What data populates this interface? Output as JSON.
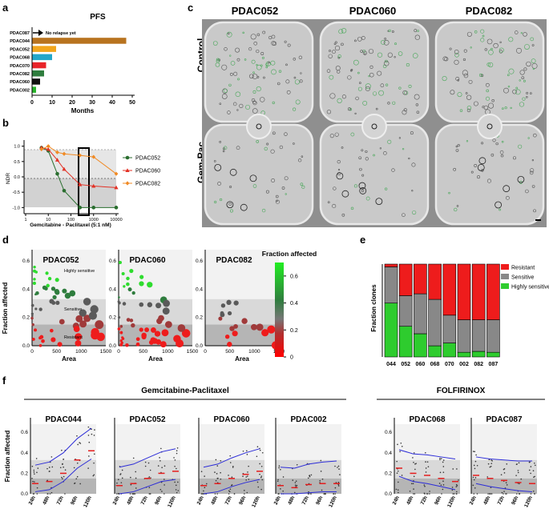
{
  "panels": {
    "a": "a",
    "b": "b",
    "c": "c",
    "d": "d",
    "e": "e",
    "f": "f"
  },
  "chart_data": [
    {
      "id": "a",
      "type": "bar",
      "orientation": "horizontal",
      "title": "PFS",
      "xlabel": "Months",
      "xlim": [
        0,
        50
      ],
      "xticks": [
        0,
        10,
        20,
        30,
        40,
        50
      ],
      "categories": [
        "PDAC087",
        "PDAC044",
        "PDAC052",
        "PDAC068",
        "PDAC070",
        "PDAC082",
        "PDAC060",
        "PDAC002"
      ],
      "values": [
        0,
        47,
        12,
        10,
        7,
        6,
        4,
        2
      ],
      "colors": [
        "#000000",
        "#b8731f",
        "#f2a61c",
        "#22a7c9",
        "#e8242a",
        "#2f7d3e",
        "#111111",
        "#27b52a"
      ],
      "annotation": "No relapse yet"
    },
    {
      "id": "b",
      "type": "line",
      "xlabel": "Gemcitabine - Paclitaxel (5:1 nM)",
      "ylabel": "NDR",
      "xscale": "log",
      "xlim": [
        1,
        10000
      ],
      "ylim": [
        -1.2,
        1.2
      ],
      "xticks": [
        "1",
        "10",
        "100",
        "1000",
        "10000"
      ],
      "yticks": [
        "-1.0",
        "-0.5",
        "0.0",
        "0.5",
        "1.0"
      ],
      "x": [
        5,
        10,
        25,
        50,
        250,
        1000,
        10000
      ],
      "series": [
        {
          "name": "PDAC052",
          "values": [
            0.95,
            0.85,
            0.1,
            -0.45,
            -1.0,
            -1.0,
            -1.0
          ],
          "color": "#2a6e2f",
          "marker": "circle"
        },
        {
          "name": "PDAC060",
          "values": [
            0.95,
            0.9,
            0.55,
            0.25,
            -0.25,
            -0.3,
            -0.35
          ],
          "color": "#e33226",
          "marker": "triangle"
        },
        {
          "name": "PDAC082",
          "values": [
            0.9,
            1.0,
            0.8,
            0.75,
            0.7,
            0.65,
            0.1
          ],
          "color": "#f08a24",
          "marker": "diamond"
        }
      ]
    },
    {
      "id": "d",
      "type": "scatter",
      "ylabel": "Fraction affected",
      "xlabel": "Area",
      "colorbar_title": "Fraction affected",
      "colorbar_ticks": [
        "0.6",
        "0.4",
        "0.2",
        "0"
      ],
      "zone_labels": [
        "Highly sensitive",
        "Sensitive",
        "Resistant"
      ],
      "subplots": [
        {
          "title": "PDAC052",
          "xticks": [
            "0",
            "500",
            "1000",
            "1500"
          ],
          "yticks": [
            "0.0",
            "0.2",
            "0.4",
            "0.6"
          ]
        },
        {
          "title": "PDAC060",
          "xticks": [
            "0",
            "500",
            "1000",
            "1500"
          ],
          "yticks": [
            "0.0",
            "0.2",
            "0.4",
            "0.6"
          ]
        },
        {
          "title": "PDAC082",
          "xticks": [
            "0",
            "500",
            "1000",
            "1500"
          ],
          "yticks": [
            "0.0",
            "0.2",
            "0.4",
            "0.6"
          ]
        }
      ]
    },
    {
      "id": "e",
      "type": "bar",
      "stacked": true,
      "ylabel": "Fraction clones",
      "categories": [
        "044",
        "052",
        "060",
        "068",
        "070",
        "002",
        "082",
        "087"
      ],
      "series": [
        {
          "name": "Highly sensitive",
          "values": [
            0.58,
            0.33,
            0.25,
            0.12,
            0.15,
            0.05,
            0.06,
            0.05
          ],
          "color": "#2ecc2e"
        },
        {
          "name": "Sensitive",
          "values": [
            0.39,
            0.33,
            0.43,
            0.5,
            0.3,
            0.35,
            0.34,
            0.35
          ],
          "color": "#888888"
        },
        {
          "name": "Resistant",
          "values": [
            0.03,
            0.34,
            0.32,
            0.38,
            0.55,
            0.6,
            0.6,
            0.6
          ],
          "color": "#ee1c1c"
        }
      ],
      "legend": [
        "Resistant",
        "Sensitive",
        "Highly sensitive"
      ]
    },
    {
      "id": "f",
      "type": "scatter",
      "ylabel": "Fraction affected",
      "groups": [
        "Gemcitabine-Paclitaxel",
        "FOLFIRINOX"
      ],
      "x": [
        "24h",
        "48h",
        "72h",
        "96h",
        "120h"
      ],
      "yticks": [
        "0.0",
        "0.2",
        "0.4",
        "0.6"
      ],
      "subplots": [
        {
          "title": "PDAC044",
          "mean": [
            0.1,
            0.12,
            0.2,
            0.33,
            0.42
          ]
        },
        {
          "title": "PDAC052",
          "mean": [
            0.08,
            0.1,
            0.15,
            0.2,
            0.22
          ]
        },
        {
          "title": "PDAC060",
          "mean": [
            0.08,
            0.1,
            0.15,
            0.19,
            0.22
          ]
        },
        {
          "title": "PDAC002",
          "mean": [
            0.08,
            0.06,
            0.09,
            0.1,
            0.1
          ]
        },
        {
          "title": "PDAC068",
          "mean": [
            0.25,
            0.2,
            0.18,
            0.15,
            0.12
          ]
        },
        {
          "title": "PDAC087",
          "mean": [
            0.18,
            0.15,
            0.13,
            0.11,
            0.1
          ]
        }
      ]
    }
  ],
  "panel_c": {
    "columns": [
      "PDAC052",
      "PDAC060",
      "PDAC082"
    ],
    "rows": [
      "Control",
      "Gem-Pac"
    ]
  }
}
